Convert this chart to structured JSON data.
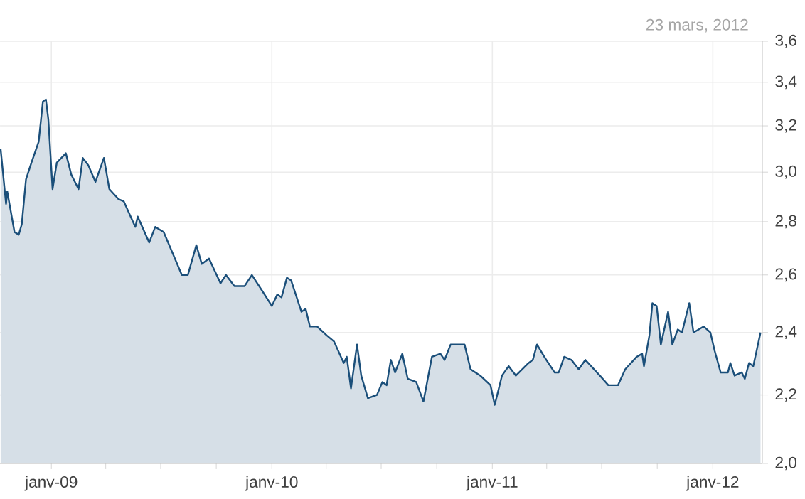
{
  "chart_data": {
    "type": "area",
    "annotations": [
      "23 mars, 2012"
    ],
    "x": [
      "2008-10-09",
      "2008-10-16",
      "2008-10-18",
      "2008-10-20",
      "2008-11-01",
      "2008-11-08",
      "2008-11-13",
      "2008-11-20",
      "2008-11-29",
      "2008-12-11",
      "2008-12-18",
      "2008-12-23",
      "2008-12-27",
      "2009-01-03",
      "2009-01-10",
      "2009-01-25",
      "2009-02-03",
      "2009-02-15",
      "2009-02-22",
      "2009-03-03",
      "2009-03-15",
      "2009-03-29",
      "2009-04-07",
      "2009-04-22",
      "2009-05-01",
      "2009-05-20",
      "2009-05-24",
      "2009-06-12",
      "2009-06-22",
      "2009-07-06",
      "2009-08-05",
      "2009-08-15",
      "2009-08-29",
      "2009-09-07",
      "2009-09-19",
      "2009-10-08",
      "2009-10-17",
      "2009-10-31",
      "2009-11-17",
      "2009-11-29",
      "2009-12-17",
      "2010-01-01",
      "2010-01-10",
      "2010-01-17",
      "2010-01-26",
      "2010-02-02",
      "2010-02-19",
      "2010-02-26",
      "2010-03-05",
      "2010-03-17",
      "2010-04-02",
      "2010-04-14",
      "2010-04-30",
      "2010-05-05",
      "2010-05-12",
      "2010-05-22",
      "2010-05-29",
      "2010-06-09",
      "2010-06-24",
      "2010-07-03",
      "2010-07-10",
      "2010-07-17",
      "2010-07-24",
      "2010-08-05",
      "2010-08-14",
      "2010-08-28",
      "2010-09-09",
      "2010-09-23",
      "2010-10-07",
      "2010-10-14",
      "2010-10-24",
      "2010-11-16",
      "2010-11-26",
      "2010-12-12",
      "2010-12-29",
      "2011-01-05",
      "2011-01-17",
      "2011-01-28",
      "2011-02-09",
      "2011-03-02",
      "2011-03-09",
      "2011-03-16",
      "2011-03-28",
      "2011-04-14",
      "2011-04-21",
      "2011-04-30",
      "2011-05-12",
      "2011-05-24",
      "2011-06-04",
      "2011-06-28",
      "2011-07-12",
      "2011-07-28",
      "2011-08-09",
      "2011-08-28",
      "2011-09-06",
      "2011-09-09",
      "2011-09-18",
      "2011-09-23",
      "2011-09-30",
      "2011-10-07",
      "2011-10-19",
      "2011-10-26",
      "2011-11-04",
      "2011-11-11",
      "2011-11-23",
      "2011-11-30",
      "2011-12-17",
      "2011-12-28",
      "2012-01-04",
      "2012-01-14",
      "2012-01-26",
      "2012-01-30",
      "2012-02-06",
      "2012-02-18",
      "2012-02-23",
      "2012-03-01",
      "2012-03-08",
      "2012-03-20"
    ],
    "series": [
      {
        "color": "#1b4f7a",
        "values": [
          3.1,
          2.92,
          2.87,
          2.92,
          2.76,
          2.75,
          2.79,
          2.97,
          3.04,
          3.13,
          3.31,
          3.32,
          3.23,
          2.93,
          3.04,
          3.08,
          2.99,
          2.93,
          3.06,
          3.03,
          2.96,
          3.06,
          2.93,
          2.89,
          2.88,
          2.78,
          2.82,
          2.72,
          2.78,
          2.76,
          2.6,
          2.6,
          2.71,
          2.64,
          2.66,
          2.57,
          2.6,
          2.56,
          2.56,
          2.6,
          2.54,
          2.49,
          2.53,
          2.52,
          2.59,
          2.58,
          2.47,
          2.48,
          2.42,
          2.42,
          2.39,
          2.37,
          2.3,
          2.32,
          2.22,
          2.36,
          2.26,
          2.19,
          2.2,
          2.24,
          2.23,
          2.31,
          2.27,
          2.33,
          2.25,
          2.24,
          2.18,
          2.32,
          2.33,
          2.31,
          2.36,
          2.36,
          2.28,
          2.26,
          2.23,
          2.17,
          2.26,
          2.29,
          2.26,
          2.3,
          2.31,
          2.36,
          2.32,
          2.27,
          2.27,
          2.32,
          2.31,
          2.28,
          2.31,
          2.26,
          2.23,
          2.23,
          2.28,
          2.32,
          2.33,
          2.29,
          2.39,
          2.5,
          2.49,
          2.36,
          2.47,
          2.36,
          2.41,
          2.4,
          2.5,
          2.4,
          2.42,
          2.4,
          2.34,
          2.27,
          2.27,
          2.3,
          2.26,
          2.27,
          2.25,
          2.3,
          2.29,
          2.4
        ]
      }
    ],
    "xlim": [
      "2008-10-08",
      "2012-03-23"
    ],
    "xticks": [
      {
        "value": "2009-01-01",
        "label": "janv-09"
      },
      {
        "value": "2009-04-01",
        "label": null
      },
      {
        "value": "2009-07-01",
        "label": null
      },
      {
        "value": "2009-10-01",
        "label": null
      },
      {
        "value": "2010-01-01",
        "label": "janv-10"
      },
      {
        "value": "2010-04-01",
        "label": null
      },
      {
        "value": "2010-07-01",
        "label": null
      },
      {
        "value": "2010-10-01",
        "label": null
      },
      {
        "value": "2011-01-01",
        "label": "janv-11"
      },
      {
        "value": "2011-04-01",
        "label": null
      },
      {
        "value": "2011-07-01",
        "label": null
      },
      {
        "value": "2011-10-01",
        "label": null
      },
      {
        "value": "2012-01-01",
        "label": "janv-12"
      }
    ],
    "ylim": [
      2.0,
      3.6
    ],
    "yticks": [
      {
        "value": 2.0,
        "label": "2,0"
      },
      {
        "value": 2.2,
        "label": "2,2"
      },
      {
        "value": 2.4,
        "label": "2,4"
      },
      {
        "value": 2.6,
        "label": "2,6"
      },
      {
        "value": 2.8,
        "label": "2,8"
      },
      {
        "value": 3.0,
        "label": "3,0"
      },
      {
        "value": 3.2,
        "label": "3,2"
      },
      {
        "value": 3.4,
        "label": "3,4"
      },
      {
        "value": 3.6,
        "label": "3,6"
      }
    ],
    "log": "y",
    "grid": true
  }
}
